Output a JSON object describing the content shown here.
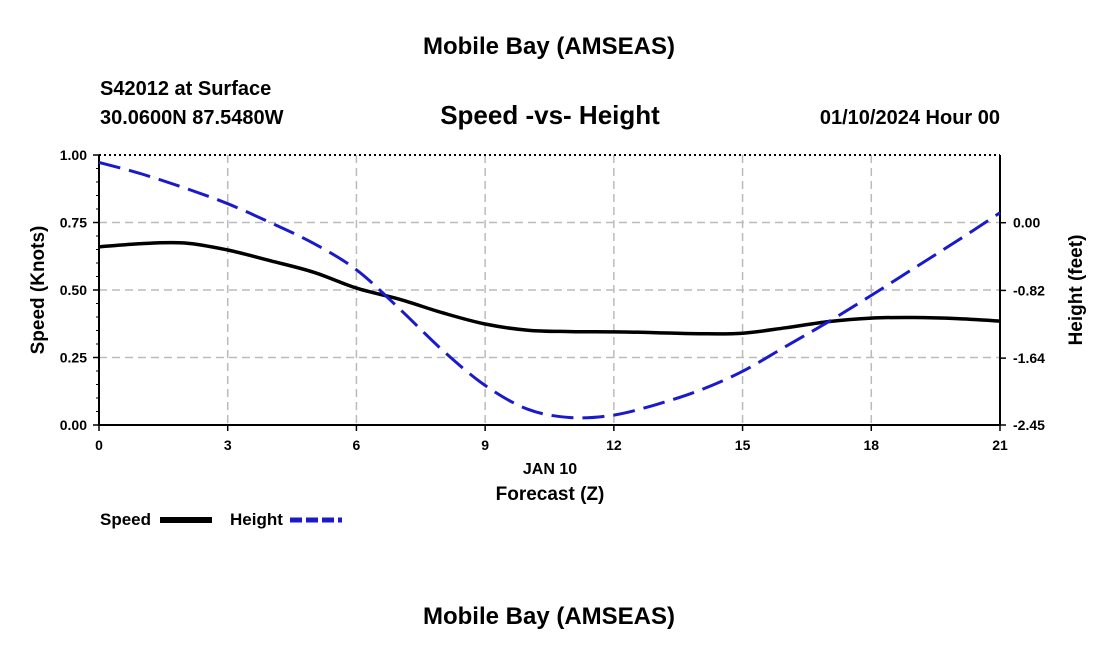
{
  "page": {
    "top_title": "Mobile Bay (AMSEAS)",
    "station": "S42012 at Surface",
    "location": "30.0600N  87.5480W",
    "timestamp": "01/10/2024 Hour 00",
    "bottom_title": "Mobile Bay (AMSEAS)"
  },
  "chart_data": {
    "type": "line",
    "title": "Speed -vs- Height",
    "date_label": "JAN 10",
    "xlabel": "Forecast (Z)",
    "ylabel": "Speed (Knots)",
    "y2label": "Height (feet)",
    "xlim": [
      0,
      21
    ],
    "x_ticks": [
      "0",
      "3",
      "6",
      "9",
      "12",
      "15",
      "18",
      "21"
    ],
    "ylim": [
      0,
      1
    ],
    "y_ticks": [
      "0.00",
      "0.25",
      "0.50",
      "0.75",
      "1.00"
    ],
    "y2lim": [
      -2.45,
      0.82
    ],
    "y2_ticks": [
      "-2.45",
      "-1.64",
      "-0.82",
      "0.00"
    ],
    "grid": true,
    "series": [
      {
        "name": "Speed",
        "axis": "left",
        "style": "solid",
        "color": "#000000",
        "x": [
          0,
          1,
          2,
          3,
          4,
          5,
          6,
          7,
          8,
          9,
          10,
          11,
          12,
          13,
          14,
          15,
          16,
          17,
          18,
          19,
          20,
          21
        ],
        "values": [
          0.66,
          0.672,
          0.674,
          0.648,
          0.608,
          0.566,
          0.507,
          0.466,
          0.416,
          0.374,
          0.351,
          0.346,
          0.345,
          0.342,
          0.338,
          0.34,
          0.36,
          0.383,
          0.396,
          0.398,
          0.394,
          0.385
        ]
      },
      {
        "name": "Height",
        "axis": "right",
        "style": "dashed",
        "color": "#1a1acc",
        "x": [
          0,
          1,
          2,
          3,
          4,
          5,
          6,
          7,
          8,
          9,
          10,
          11,
          12,
          13,
          14,
          15,
          16,
          17,
          18,
          19,
          20,
          21
        ],
        "values": [
          0.73,
          0.59,
          0.42,
          0.23,
          0.0,
          -0.25,
          -0.57,
          -1.04,
          -1.54,
          -1.97,
          -2.26,
          -2.36,
          -2.33,
          -2.2,
          -2.03,
          -1.8,
          -1.5,
          -1.2,
          -0.88,
          -0.55,
          -0.22,
          0.12
        ]
      }
    ],
    "legend": [
      "Speed",
      "Height"
    ],
    "legend_position": "bottom-left"
  }
}
